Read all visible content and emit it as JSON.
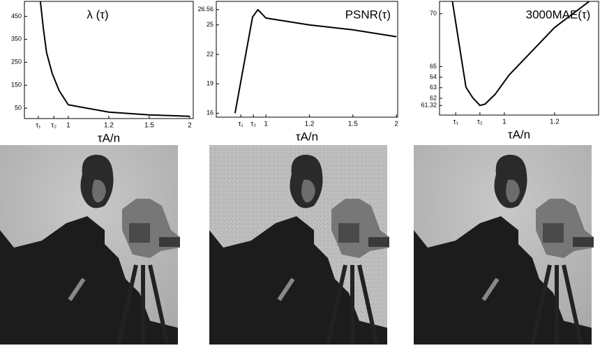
{
  "chart_data": [
    {
      "type": "line",
      "title": "λ (τ)",
      "x_label": "τA/n",
      "xscale": "reciprocal",
      "x": [
        0.897,
        0.907,
        0.918,
        0.938,
        0.964,
        1,
        1.2,
        1.5,
        2
      ],
      "values": [
        515,
        396,
        291,
        201,
        126,
        65,
        33,
        21,
        15
      ],
      "color": "#000000",
      "xlim": [
        0.847,
        2.06
      ],
      "xticks": [
        {
          "value": 0.89,
          "label": "τ₁"
        },
        {
          "value": 0.944,
          "label": "τ₂"
        },
        1,
        1.2,
        1.5,
        2
      ],
      "ylim": [
        5,
        515
      ],
      "yticks": [
        50,
        150,
        250,
        350,
        450
      ]
    },
    {
      "type": "line",
      "title": "PSNR(τ)",
      "x_label": "τA/n",
      "xscale": "reciprocal",
      "x": [
        0.894,
        0.951,
        0.97,
        1,
        1.2,
        1.5,
        2
      ],
      "values": [
        16,
        25.8,
        26.56,
        25.7,
        25.0,
        24.5,
        23.8
      ],
      "color": "#000000",
      "xlim": [
        0.84,
        2.02
      ],
      "xticks": [
        {
          "value": 0.912,
          "label": "τ₁"
        },
        {
          "value": 0.954,
          "label": "τ₂"
        },
        1,
        1.2,
        1.5,
        2
      ],
      "ylim": [
        15.6,
        27.4
      ],
      "yticks": [
        16,
        19,
        22,
        25,
        26.56
      ]
    },
    {
      "type": "line",
      "title": "3000MAE(τ)",
      "x_label": "τA/n",
      "xscale": "reciprocal",
      "x": [
        0.853,
        0.873,
        0.887,
        0.904,
        0.925,
        0.94,
        0.971,
        1.016,
        1.2,
        1.392
      ],
      "values": [
        71.17,
        66.3,
        63.05,
        62.1,
        61.32,
        61.45,
        62.4,
        64.2,
        68.7,
        71.17
      ],
      "color": "#000000",
      "xlim": [
        0.823,
        1.455
      ],
      "xticks": [
        {
          "value": 0.861,
          "label": "τ₁"
        },
        {
          "value": 0.925,
          "label": "τ₂"
        },
        1,
        1.2
      ],
      "ylim": [
        60.41,
        71.17
      ],
      "yticks": [
        61.32,
        62,
        63,
        64,
        65,
        70
      ]
    }
  ]
}
